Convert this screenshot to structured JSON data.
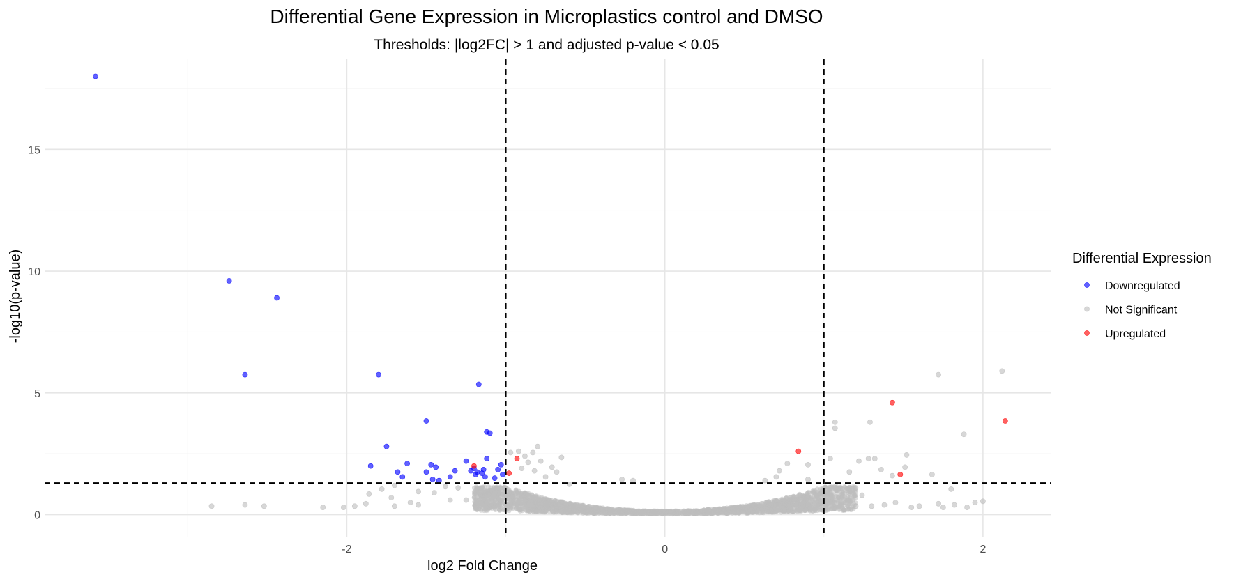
{
  "chart_data": {
    "type": "scatter",
    "title": "Differential Gene Expression in Microplastics control and DMSO",
    "subtitle": "Thresholds: |log2FC| > 1 and adjusted p-value < 0.05",
    "xlabel": "log2 Fold Change",
    "ylabel": "-log10(p-value)",
    "xlim": [
      -3.9,
      2.43
    ],
    "ylim": [
      -0.9,
      18.7
    ],
    "x_ticks": [
      -2,
      0,
      2
    ],
    "y_ticks": [
      0,
      5,
      10,
      15
    ],
    "x_tick_labels": [
      "-2",
      "0",
      "2"
    ],
    "y_tick_labels": [
      "0",
      "5",
      "10",
      "15"
    ],
    "grid": true,
    "legend": {
      "title": "Differential Expression",
      "placement": "right",
      "entries": [
        "Downregulated",
        "Not Significant",
        "Upregulated"
      ]
    },
    "thresholds": {
      "vertical": [
        -1,
        1
      ],
      "horizontal": [
        1.3
      ]
    },
    "colors": {
      "Downregulated": "#0000ff",
      "Not Significant": "#bebebe",
      "Upregulated": "#ff0000",
      "threshold_line": "#000000"
    },
    "series": [
      {
        "name": "Downregulated",
        "points": [
          [
            -3.58,
            18.0
          ],
          [
            -2.74,
            9.6
          ],
          [
            -2.44,
            8.9
          ],
          [
            -2.64,
            5.75
          ],
          [
            -1.8,
            5.75
          ],
          [
            -1.17,
            5.35
          ],
          [
            -1.5,
            3.85
          ],
          [
            -1.12,
            3.4
          ],
          [
            -1.1,
            3.35
          ],
          [
            -1.75,
            2.8
          ],
          [
            -1.85,
            2.0
          ],
          [
            -1.68,
            1.75
          ],
          [
            -1.65,
            1.55
          ],
          [
            -1.62,
            2.1
          ],
          [
            -1.47,
            2.05
          ],
          [
            -1.44,
            1.95
          ],
          [
            -1.5,
            1.75
          ],
          [
            -1.46,
            1.45
          ],
          [
            -1.42,
            1.4
          ],
          [
            -1.35,
            1.55
          ],
          [
            -1.32,
            1.8
          ],
          [
            -1.25,
            2.2
          ],
          [
            -1.22,
            1.8
          ],
          [
            -1.2,
            1.9
          ],
          [
            -1.18,
            1.75
          ],
          [
            -1.15,
            1.7
          ],
          [
            -1.13,
            1.55
          ],
          [
            -1.12,
            2.3
          ],
          [
            -1.07,
            1.5
          ],
          [
            -1.05,
            1.85
          ],
          [
            -1.03,
            2.05
          ],
          [
            -1.02,
            1.65
          ],
          [
            -1.19,
            1.65
          ],
          [
            -1.14,
            1.85
          ]
        ]
      },
      {
        "name": "Upregulated",
        "points": [
          [
            -0.93,
            2.3
          ],
          [
            -0.98,
            1.7
          ],
          [
            0.84,
            2.6
          ],
          [
            1.43,
            4.6
          ],
          [
            2.14,
            3.85
          ],
          [
            1.48,
            1.65
          ],
          [
            -1.2,
            2.0
          ]
        ]
      },
      {
        "name": "Not Significant",
        "points": [
          [
            -2.85,
            0.35
          ],
          [
            -2.64,
            0.4
          ],
          [
            -2.52,
            0.35
          ],
          [
            -2.15,
            0.3
          ],
          [
            -2.02,
            0.3
          ],
          [
            -1.95,
            0.35
          ],
          [
            -1.88,
            0.45
          ],
          [
            -1.86,
            0.85
          ],
          [
            -1.78,
            1.05
          ],
          [
            -1.72,
            0.7
          ],
          [
            -1.7,
            1.2
          ],
          [
            -1.6,
            0.5
          ],
          [
            -1.55,
            0.95
          ],
          [
            -1.45,
            0.9
          ],
          [
            -1.38,
            1.15
          ],
          [
            -1.3,
            1.1
          ],
          [
            -1.25,
            0.6
          ],
          [
            -1.1,
            0.95
          ],
          [
            -0.97,
            2.55
          ],
          [
            -0.92,
            2.6
          ],
          [
            -0.88,
            2.4
          ],
          [
            -0.83,
            2.55
          ],
          [
            -0.8,
            2.8
          ],
          [
            -0.78,
            2.2
          ],
          [
            -0.86,
            2.15
          ],
          [
            -0.71,
            1.95
          ],
          [
            -0.65,
            2.35
          ],
          [
            -0.75,
            1.55
          ],
          [
            -0.9,
            1.9
          ],
          [
            -0.6,
            1.25
          ],
          [
            -0.68,
            1.75
          ],
          [
            -0.82,
            1.8
          ],
          [
            0.63,
            1.4
          ],
          [
            0.7,
            1.55
          ],
          [
            0.72,
            1.8
          ],
          [
            0.77,
            2.1
          ],
          [
            0.9,
            1.45
          ],
          [
            0.9,
            2.05
          ],
          [
            1.04,
            2.3
          ],
          [
            1.07,
            3.8
          ],
          [
            1.07,
            3.55
          ],
          [
            1.2,
            1.1
          ],
          [
            1.16,
            1.75
          ],
          [
            1.22,
            2.2
          ],
          [
            1.28,
            2.3
          ],
          [
            1.32,
            2.3
          ],
          [
            1.36,
            1.85
          ],
          [
            1.43,
            1.6
          ],
          [
            1.51,
            1.95
          ],
          [
            1.52,
            2.45
          ],
          [
            1.29,
            3.8
          ],
          [
            1.72,
            5.75
          ],
          [
            2.12,
            5.9
          ],
          [
            1.88,
            3.3
          ],
          [
            1.68,
            1.65
          ],
          [
            1.72,
            0.45
          ],
          [
            1.75,
            0.3
          ],
          [
            1.8,
            1.05
          ],
          [
            1.82,
            0.4
          ],
          [
            1.9,
            0.3
          ],
          [
            1.95,
            0.5
          ],
          [
            2.0,
            0.55
          ],
          [
            1.1,
            0.35
          ],
          [
            1.2,
            0.35
          ],
          [
            1.24,
            0.8
          ],
          [
            1.3,
            0.35
          ],
          [
            1.38,
            0.4
          ],
          [
            1.45,
            0.5
          ],
          [
            1.55,
            0.3
          ],
          [
            1.6,
            0.35
          ],
          [
            0.85,
            0.8
          ],
          [
            0.95,
            0.6
          ],
          [
            1.0,
            0.45
          ],
          [
            -0.2,
            1.4
          ],
          [
            -0.27,
            1.45
          ],
          [
            -1.55,
            0.4
          ],
          [
            -1.7,
            0.35
          ],
          [
            -1.35,
            0.6
          ]
        ]
      }
    ]
  }
}
